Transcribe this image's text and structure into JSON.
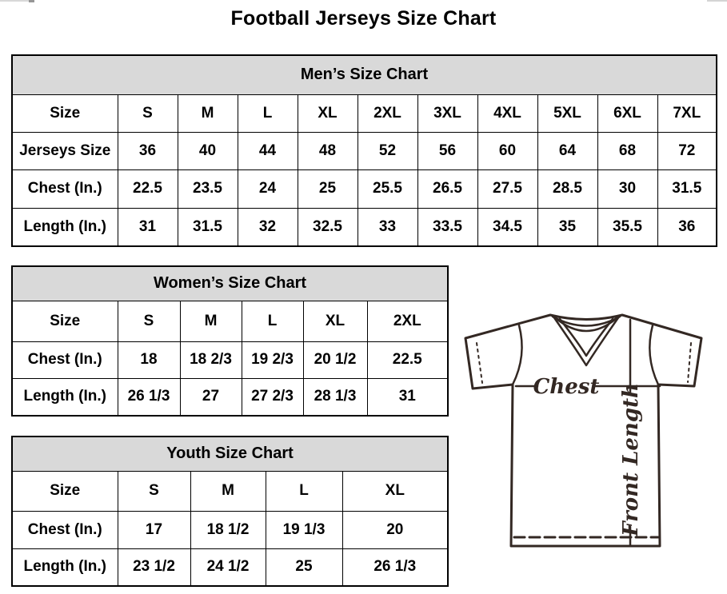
{
  "page": {
    "title": "Football Jerseys Size Chart"
  },
  "tables": {
    "men": {
      "title": "Men’s Size Chart",
      "rows": [
        {
          "label": "Size",
          "values": [
            "S",
            "M",
            "L",
            "XL",
            "2XL",
            "3XL",
            "4XL",
            "5XL",
            "6XL",
            "7XL"
          ]
        },
        {
          "label": "Jerseys Size",
          "values": [
            "36",
            "40",
            "44",
            "48",
            "52",
            "56",
            "60",
            "64",
            "68",
            "72"
          ]
        },
        {
          "label": "Chest (In.)",
          "values": [
            "22.5",
            "23.5",
            "24",
            "25",
            "25.5",
            "26.5",
            "27.5",
            "28.5",
            "30",
            "31.5"
          ]
        },
        {
          "label": "Length (In.)",
          "values": [
            "31",
            "31.5",
            "32",
            "32.5",
            "33",
            "33.5",
            "34.5",
            "35",
            "35.5",
            "36"
          ]
        }
      ]
    },
    "women": {
      "title": "Women’s Size Chart",
      "rows": [
        {
          "label": "Size",
          "values": [
            "S",
            "M",
            "L",
            "XL",
            "2XL"
          ]
        },
        {
          "label": "Chest (In.)",
          "values": [
            "18",
            "18 2/3",
            "19 2/3",
            "20 1/2",
            "22.5"
          ]
        },
        {
          "label": "Length (In.)",
          "values": [
            "26 1/3",
            "27",
            "27 2/3",
            "28 1/3",
            "31"
          ]
        }
      ]
    },
    "youth": {
      "title": "Youth Size Chart",
      "rows": [
        {
          "label": "Size",
          "values": [
            "S",
            "M",
            "L",
            "XL"
          ]
        },
        {
          "label": "Chest (In.)",
          "values": [
            "17",
            "18 1/2",
            "19 1/3",
            "20"
          ]
        },
        {
          "label": "Length (In.)",
          "values": [
            "23 1/2",
            "24 1/2",
            "25",
            "26 1/3"
          ]
        }
      ]
    }
  },
  "diagram": {
    "chest_label": "Chest",
    "front_length_label": "Front Length"
  },
  "colors": {
    "header_bg": "#d9d9d9",
    "table_border": "#000000",
    "diagram_ink": "#332823"
  }
}
